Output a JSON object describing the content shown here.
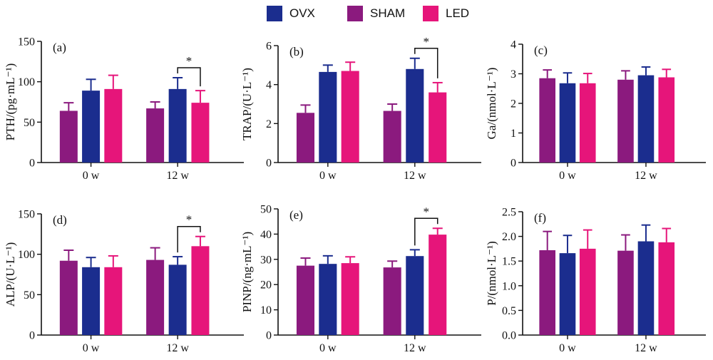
{
  "legend": [
    {
      "name": "OVX",
      "color": "#1b2d8e"
    },
    {
      "name": "SHAM",
      "color": "#8b1a7e"
    },
    {
      "name": "LED",
      "color": "#e6157a"
    }
  ],
  "chart_data": [
    {
      "type": "bar",
      "panel_label": "(a)",
      "ylabel": "PTH/(pg·mL⁻¹)",
      "categories": [
        "0 w",
        "12 w"
      ],
      "ylim": [
        0,
        150
      ],
      "yticks": [
        "0",
        "50",
        "100",
        "150"
      ],
      "series": [
        {
          "name": "SHAM",
          "values": [
            64,
            67
          ],
          "errors": [
            10,
            8
          ]
        },
        {
          "name": "OVX",
          "values": [
            89,
            91
          ],
          "errors": [
            14,
            14
          ]
        },
        {
          "name": "LED",
          "values": [
            91,
            74
          ],
          "errors": [
            17,
            15
          ]
        }
      ],
      "significance": [
        {
          "category": "12 w",
          "between": [
            "OVX",
            "LED"
          ],
          "label": "*"
        }
      ]
    },
    {
      "type": "bar",
      "panel_label": "(b)",
      "ylabel": "TRAP/(U·L⁻¹)",
      "categories": [
        "0 w",
        "12 w"
      ],
      "ylim": [
        0,
        6
      ],
      "yticks": [
        "0",
        "2",
        "4",
        "6"
      ],
      "series": [
        {
          "name": "SHAM",
          "values": [
            2.55,
            2.65
          ],
          "errors": [
            0.4,
            0.35
          ]
        },
        {
          "name": "OVX",
          "values": [
            4.65,
            4.8
          ],
          "errors": [
            0.35,
            0.55
          ]
        },
        {
          "name": "LED",
          "values": [
            4.7,
            3.6
          ],
          "errors": [
            0.45,
            0.5
          ]
        }
      ],
      "significance": [
        {
          "category": "12 w",
          "between": [
            "OVX",
            "LED"
          ],
          "label": "*"
        }
      ]
    },
    {
      "type": "bar",
      "panel_label": "(c)",
      "ylabel": "Ga/(nmol·L⁻¹)",
      "categories": [
        "0 w",
        "12 w"
      ],
      "ylim": [
        0,
        4
      ],
      "yticks": [
        "0",
        "1",
        "2",
        "3",
        "4"
      ],
      "series": [
        {
          "name": "SHAM",
          "values": [
            2.85,
            2.8
          ],
          "errors": [
            0.28,
            0.3
          ]
        },
        {
          "name": "OVX",
          "values": [
            2.68,
            2.95
          ],
          "errors": [
            0.35,
            0.28
          ]
        },
        {
          "name": "LED",
          "values": [
            2.68,
            2.88
          ],
          "errors": [
            0.33,
            0.27
          ]
        }
      ],
      "significance": []
    },
    {
      "type": "bar",
      "panel_label": "(d)",
      "ylabel": "ALP/(U·L⁻¹)",
      "categories": [
        "0 w",
        "12 w"
      ],
      "ylim": [
        0,
        150
      ],
      "yticks": [
        "0",
        "50",
        "100",
        "150"
      ],
      "series": [
        {
          "name": "SHAM",
          "values": [
            92,
            93
          ],
          "errors": [
            13,
            15
          ]
        },
        {
          "name": "OVX",
          "values": [
            84,
            87
          ],
          "errors": [
            12,
            10
          ]
        },
        {
          "name": "LED",
          "values": [
            84,
            110
          ],
          "errors": [
            14,
            12
          ]
        }
      ],
      "significance": [
        {
          "category": "12 w",
          "between": [
            "OVX",
            "LED"
          ],
          "label": "*"
        }
      ]
    },
    {
      "type": "bar",
      "panel_label": "(e)",
      "ylabel": "PINP/(ng·mL⁻¹)",
      "categories": [
        "0 w",
        "12 w"
      ],
      "ylim": [
        0,
        50
      ],
      "yticks": [
        "0",
        "10",
        "20",
        "30",
        "40",
        "50"
      ],
      "series": [
        {
          "name": "SHAM",
          "values": [
            27.5,
            26.8
          ],
          "errors": [
            3,
            2.5
          ]
        },
        {
          "name": "OVX",
          "values": [
            28.2,
            31.3
          ],
          "errors": [
            3.2,
            2.5
          ]
        },
        {
          "name": "LED",
          "values": [
            28.5,
            39.8
          ],
          "errors": [
            2.5,
            2.5
          ]
        }
      ],
      "significance": [
        {
          "category": "12 w",
          "between": [
            "OVX",
            "LED"
          ],
          "label": "*"
        }
      ]
    },
    {
      "type": "bar",
      "panel_label": "(f)",
      "ylabel": "P/(nmol·L⁻¹)",
      "categories": [
        "0 w",
        "12 w"
      ],
      "ylim": [
        0,
        2.5
      ],
      "yticks": [
        "0.0",
        "0.5",
        "1.0",
        "1.5",
        "2.0",
        "2.5"
      ],
      "series": [
        {
          "name": "SHAM",
          "values": [
            1.72,
            1.71
          ],
          "errors": [
            0.38,
            0.32
          ]
        },
        {
          "name": "OVX",
          "values": [
            1.66,
            1.9
          ],
          "errors": [
            0.36,
            0.33
          ]
        },
        {
          "name": "LED",
          "values": [
            1.75,
            1.88
          ],
          "errors": [
            0.38,
            0.28
          ]
        }
      ],
      "significance": []
    }
  ]
}
